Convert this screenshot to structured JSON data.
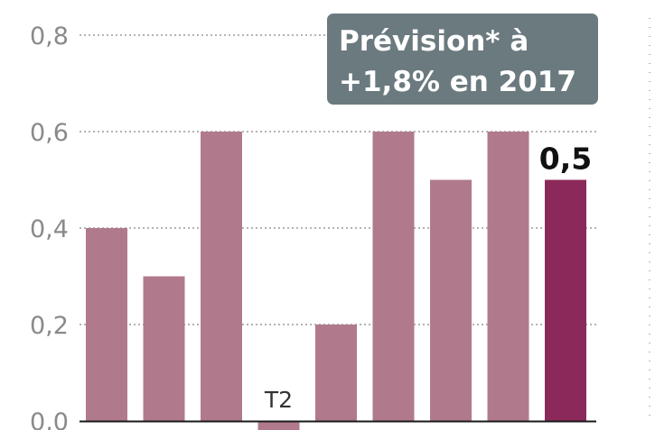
{
  "chart_data": {
    "type": "bar",
    "title": "",
    "xlabel": "",
    "ylabel": "",
    "ylim": [
      0,
      0.8
    ],
    "yticks": [
      0.0,
      0.2,
      0.4,
      0.6,
      0.8
    ],
    "ytick_labels": [
      "0,0",
      "0,2",
      "0,4",
      "0,6",
      "0,8"
    ],
    "grid": true,
    "categories": [
      "",
      "",
      "",
      "T2",
      "",
      "",
      "",
      "",
      ""
    ],
    "values": [
      0.4,
      0.3,
      0.6,
      -0.02,
      0.2,
      0.6,
      0.5,
      0.6,
      0.5
    ],
    "highlight_index": 8,
    "data_labels": [
      {
        "index": 8,
        "text": "0,5"
      }
    ],
    "annotation": {
      "lines": [
        "Prévision* à",
        "+1,8% en 2017"
      ],
      "position": "top-right"
    },
    "colors": {
      "bar": "#b07a8c",
      "highlight": "#8b2a5a",
      "annotation_bg": "#6b7a7f"
    }
  }
}
